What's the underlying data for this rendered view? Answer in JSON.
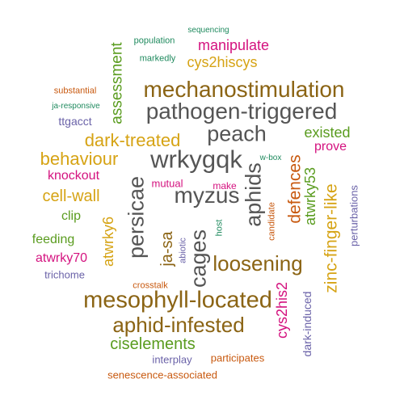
{
  "colors": {
    "brown": "#8b6414",
    "gray": "#555555",
    "teal": "#1f8a5e",
    "magenta": "#d4127f",
    "orange": "#c8590f",
    "gold": "#d6a314",
    "green": "#5a9c1f",
    "purple": "#6a62a8"
  },
  "words": [
    {
      "id": "mechanostimulation",
      "text": "mechanostimulation"
    },
    {
      "id": "pathogen-triggered",
      "text": "pathogen-triggered"
    },
    {
      "id": "mesophyll-located",
      "text": "mesophyll-located"
    },
    {
      "id": "aphid-infested",
      "text": "aphid-infested"
    },
    {
      "id": "myzus",
      "text": "myzus"
    },
    {
      "id": "wrkygqk",
      "text": "wrkygqk"
    },
    {
      "id": "peach",
      "text": "peach"
    },
    {
      "id": "loosening",
      "text": "loosening"
    },
    {
      "id": "dark-treated",
      "text": "dark-treated"
    },
    {
      "id": "behaviour",
      "text": "behaviour"
    },
    {
      "id": "cell-wall",
      "text": "cell-wall"
    },
    {
      "id": "ciselements",
      "text": "ciselements"
    },
    {
      "id": "existed",
      "text": "existed"
    },
    {
      "id": "manipulate",
      "text": "manipulate"
    },
    {
      "id": "cys2hiscys",
      "text": "cys2hiscys"
    },
    {
      "id": "knockout",
      "text": "knockout"
    },
    {
      "id": "prove",
      "text": "prove"
    },
    {
      "id": "feeding",
      "text": "feeding"
    },
    {
      "id": "atwrky70",
      "text": "atwrky70"
    },
    {
      "id": "clip",
      "text": "clip"
    },
    {
      "id": "mutual",
      "text": "mutual"
    },
    {
      "id": "make",
      "text": "make"
    },
    {
      "id": "ttgacct",
      "text": "ttgacct"
    },
    {
      "id": "substantial",
      "text": "substantial"
    },
    {
      "id": "ja-responsive",
      "text": "ja-responsive"
    },
    {
      "id": "population",
      "text": "population"
    },
    {
      "id": "sequencing",
      "text": "sequencing"
    },
    {
      "id": "markedly",
      "text": "markedly"
    },
    {
      "id": "w-box",
      "text": "w-box"
    },
    {
      "id": "trichome",
      "text": "trichome"
    },
    {
      "id": "crosstalk",
      "text": "crosstalk"
    },
    {
      "id": "interplay",
      "text": "interplay"
    },
    {
      "id": "participates",
      "text": "participates"
    },
    {
      "id": "senescence-associated",
      "text": "senescence-associated"
    },
    {
      "id": "persicae",
      "text": "persicae"
    },
    {
      "id": "cages",
      "text": "cages"
    },
    {
      "id": "aphids",
      "text": "aphids"
    },
    {
      "id": "defences",
      "text": "defences"
    },
    {
      "id": "zinc-finger-like",
      "text": "zinc-finger-like"
    },
    {
      "id": "atwrky53",
      "text": "atwrky53"
    },
    {
      "id": "assessment",
      "text": "assessment"
    },
    {
      "id": "atwrky6",
      "text": "atwrky6"
    },
    {
      "id": "ja-sa",
      "text": "ja-sa"
    },
    {
      "id": "cys2his2",
      "text": "cys2his2"
    },
    {
      "id": "dark-induced",
      "text": "dark-induced"
    },
    {
      "id": "perturbations",
      "text": "perturbations"
    },
    {
      "id": "abiotic",
      "text": "abiotic"
    },
    {
      "id": "host",
      "text": "host"
    },
    {
      "id": "candidate",
      "text": "candidate"
    }
  ]
}
